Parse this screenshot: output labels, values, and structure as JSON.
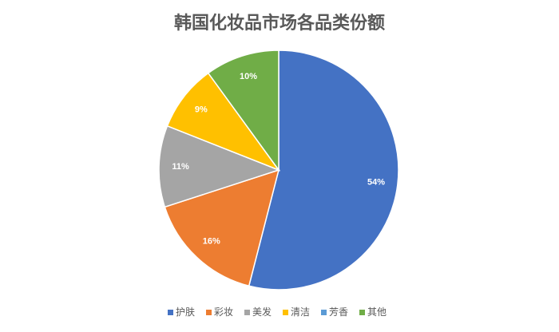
{
  "chart_data": {
    "type": "pie",
    "title": "韩国化妆品市场各品类份额",
    "categories": [
      "护肤",
      "彩妆",
      "美发",
      "清洁",
      "芳香",
      "其他"
    ],
    "values": [
      54,
      16,
      11,
      9,
      0,
      10
    ],
    "value_labels": [
      "54%",
      "16%",
      "11%",
      "9%",
      null,
      "10%"
    ],
    "colors": [
      "#4472c4",
      "#ed7d31",
      "#a5a5a5",
      "#ffc000",
      "#5b9bd5",
      "#70ad47"
    ],
    "legend": "bottom"
  }
}
